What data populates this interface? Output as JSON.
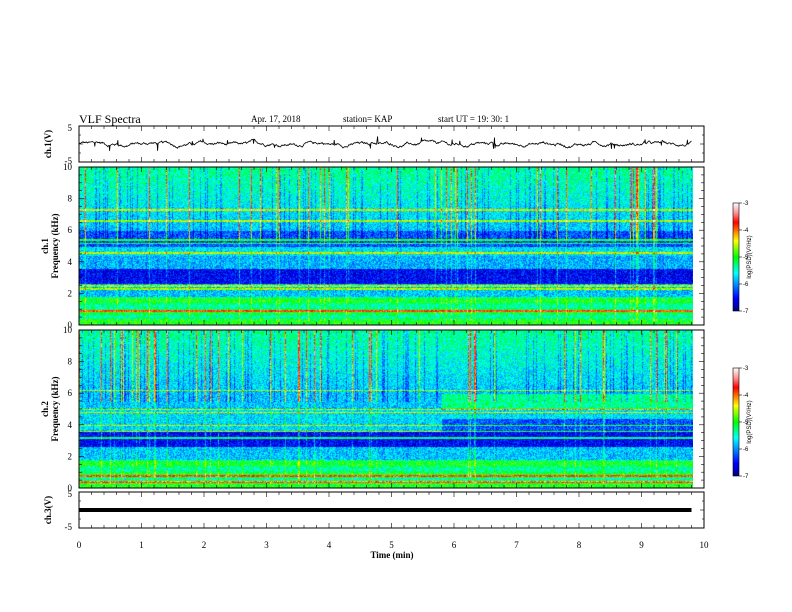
{
  "header": {
    "title": "VLF Spectra",
    "date": "Apr. 17, 2018",
    "station": "station= KAP",
    "start": "start  UT =   19: 30: 1"
  },
  "chart_data": [
    {
      "type": "line",
      "id": "ch1-waveform",
      "ylabel": "ch.1(V)",
      "ylim": [
        -5,
        5
      ],
      "yticks": [
        "5",
        "-5"
      ],
      "xlim": [
        0,
        10
      ],
      "color": "#000000"
    },
    {
      "type": "heatmap",
      "id": "ch1-spectrogram",
      "ylabel": "ch.1\nFrequency (kHz)",
      "ylabel_line1": "ch.1",
      "ylabel_line2": "Frequency  (kHz)",
      "ylim": [
        0,
        10
      ],
      "yticks": [
        "0",
        "2",
        "4",
        "6",
        "8",
        "10"
      ],
      "xlim": [
        0,
        9.8
      ],
      "colorbar": {
        "label": "log(PSD)(V²/Hz)",
        "range": [
          -7,
          -3
        ],
        "ticks": [
          "-3",
          "-4",
          "-5",
          "-6",
          "-7"
        ]
      }
    },
    {
      "type": "heatmap",
      "id": "ch2-spectrogram",
      "ylabel_line1": "ch.2",
      "ylabel_line2": "Frequency  (kHz)",
      "ylim": [
        0,
        10
      ],
      "yticks": [
        "0",
        "2",
        "4",
        "6",
        "8",
        "10"
      ],
      "xlim": [
        0,
        9.8
      ],
      "colorbar": {
        "label": "log(PSD)(V²/Hz)",
        "range": [
          -7,
          -3
        ],
        "ticks": [
          "-3",
          "-4",
          "-5",
          "-6",
          "-7"
        ]
      }
    },
    {
      "type": "line",
      "id": "ch3-waveform",
      "ylabel": "ch.3(V)",
      "ylim": [
        -5,
        5
      ],
      "yticks": [
        "5",
        "-5"
      ],
      "value": 0,
      "xlim": [
        0,
        10
      ],
      "color": "#000000"
    }
  ],
  "xaxis": {
    "label": "Time  (min)",
    "range": [
      0,
      10
    ],
    "ticks": [
      "0",
      "1",
      "2",
      "3",
      "4",
      "5",
      "6",
      "7",
      "8",
      "9",
      "10"
    ]
  }
}
